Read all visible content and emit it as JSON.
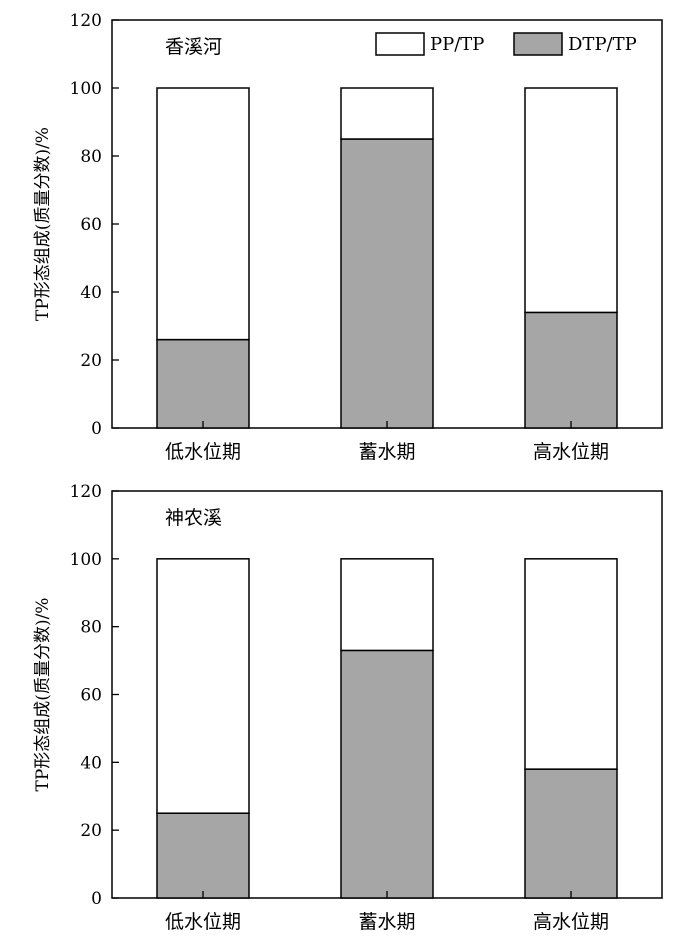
{
  "legend": {
    "pp_label": "PP/TP",
    "dtp_label": "DTP/TP"
  },
  "colors": {
    "pp": "#ffffff",
    "dtp": "#a6a6a6",
    "stroke": "#000000"
  },
  "chart_data": [
    {
      "type": "bar",
      "stacked": true,
      "title": "香溪河",
      "ylabel": "TP形态组成(质量分数)/%",
      "xlabel": "",
      "categories": [
        "低水位期",
        "蓄水期",
        "高水位期"
      ],
      "ylim": [
        0,
        120
      ],
      "yticks": [
        0,
        20,
        40,
        60,
        80,
        100,
        120
      ],
      "legend_position": "top-right",
      "series": [
        {
          "name": "DTP/TP",
          "values": [
            26,
            85,
            34
          ]
        },
        {
          "name": "PP/TP",
          "values": [
            74,
            15,
            66
          ]
        }
      ]
    },
    {
      "type": "bar",
      "stacked": true,
      "title": "神农溪",
      "ylabel": "TP形态组成(质量分数)/%",
      "xlabel": "",
      "categories": [
        "低水位期",
        "蓄水期",
        "高水位期"
      ],
      "ylim": [
        0,
        120
      ],
      "yticks": [
        0,
        20,
        40,
        60,
        80,
        100,
        120
      ],
      "series": [
        {
          "name": "DTP/TP",
          "values": [
            25,
            73,
            38
          ]
        },
        {
          "name": "PP/TP",
          "values": [
            75,
            27,
            62
          ]
        }
      ]
    }
  ]
}
